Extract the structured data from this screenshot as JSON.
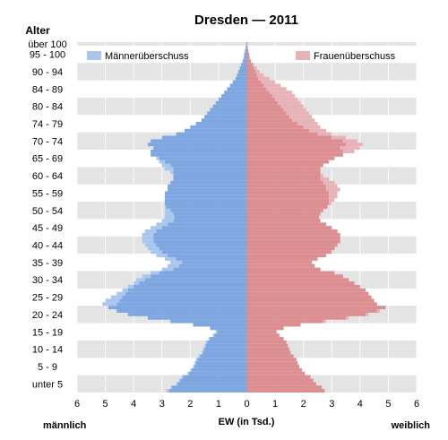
{
  "chart_data": {
    "type": "population-pyramid",
    "title": "Dresden — 2011",
    "y_axis_title": "Alter",
    "xlabel": "EW (in Tsd.)",
    "left_label": "männlich",
    "right_label": "weiblich",
    "xlim": [
      -6,
      6
    ],
    "x_ticks": [
      "6",
      "5",
      "4",
      "3",
      "2",
      "1",
      "0",
      "1",
      "2",
      "3",
      "4",
      "5",
      "6"
    ],
    "age_labels": [
      "unter 5",
      "5 - 9",
      "10 - 14",
      "15 - 19",
      "20 - 24",
      "25 - 29",
      "30 - 34",
      "35 - 39",
      "40 - 44",
      "45 - 49",
      "50 - 54",
      "55 - 59",
      "60 - 64",
      "65 - 69",
      "70 - 74",
      "74 - 79",
      "80 - 84",
      "84 - 89",
      "90 - 94",
      "95 - 100",
      "über 100"
    ],
    "legend": [
      {
        "name": "Männerüberschuss",
        "color": "#a9c6ee"
      },
      {
        "name": "Frauenüberschuss",
        "color": "#e6b4b8"
      }
    ],
    "colors": {
      "male": "#7ea6e0",
      "female": "#dc8e91",
      "male_surplus": "#a9c6ee",
      "female_surplus": "#e6b4b8",
      "band": "#e4e4e4"
    },
    "age_group_size": 5,
    "male_per_group": [
      [
        2.85,
        2.7,
        2.5,
        2.4,
        2.3
      ],
      [
        2.1,
        2.0,
        1.9,
        1.85,
        1.8
      ],
      [
        1.7,
        1.6,
        1.55,
        1.5,
        1.45
      ],
      [
        1.35,
        1.2,
        1.1,
        1.3,
        1.9
      ],
      [
        2.7,
        3.5,
        4.2,
        4.6,
        4.9
      ],
      [
        5.1,
        5.0,
        4.8,
        4.6,
        4.4
      ],
      [
        4.2,
        4.0,
        3.9,
        3.7,
        3.4
      ],
      [
        3.0,
        2.8,
        2.7,
        2.9,
        3.2
      ],
      [
        3.4,
        3.5,
        3.6,
        3.7,
        3.7
      ],
      [
        3.7,
        3.6,
        3.4,
        3.2,
        3.0
      ],
      [
        2.9,
        2.9,
        2.9,
        2.9,
        2.9
      ],
      [
        2.9,
        2.9,
        2.9,
        2.8,
        2.8
      ],
      [
        2.7,
        2.6,
        2.6,
        2.7,
        2.9
      ],
      [
        3.0,
        3.1,
        3.2,
        3.4,
        3.4
      ],
      [
        3.3,
        3.5,
        3.4,
        3.0,
        2.5
      ],
      [
        2.2,
        2.0,
        1.8,
        1.6,
        1.5
      ],
      [
        1.4,
        1.3,
        1.2,
        1.1,
        1.0
      ],
      [
        0.9,
        0.8,
        0.7,
        0.6,
        0.5
      ],
      [
        0.4,
        0.35,
        0.3,
        0.25,
        0.2
      ],
      [
        0.15,
        0.12,
        0.1,
        0.08,
        0.05
      ],
      [
        0.03
      ]
    ],
    "female_per_group": [
      [
        2.75,
        2.65,
        2.45,
        2.35,
        2.25
      ],
      [
        2.05,
        1.95,
        1.85,
        1.8,
        1.75
      ],
      [
        1.65,
        1.55,
        1.5,
        1.45,
        1.4
      ],
      [
        1.3,
        1.15,
        1.05,
        1.3,
        1.9
      ],
      [
        2.8,
        3.6,
        4.3,
        4.7,
        4.9
      ],
      [
        4.6,
        4.5,
        4.4,
        4.3,
        4.2
      ],
      [
        4.0,
        3.8,
        3.6,
        3.4,
        3.1
      ],
      [
        2.6,
        2.4,
        2.3,
        2.5,
        2.8
      ],
      [
        3.0,
        3.1,
        3.2,
        3.3,
        3.3
      ],
      [
        3.3,
        3.2,
        3.0,
        2.8,
        2.6
      ],
      [
        2.55,
        2.6,
        2.7,
        2.85,
        3.0
      ],
      [
        3.1,
        3.2,
        3.2,
        3.3,
        3.2
      ],
      [
        3.1,
        2.9,
        2.7,
        2.6,
        2.6
      ],
      [
        2.7,
        2.9,
        3.1,
        3.4,
        3.8
      ],
      [
        4.0,
        4.1,
        3.9,
        3.5,
        3.0
      ],
      [
        2.8,
        2.6,
        2.5,
        2.4,
        2.3
      ],
      [
        2.2,
        2.1,
        2.0,
        1.9,
        1.8
      ],
      [
        1.7,
        1.6,
        1.4,
        1.2,
        1.0
      ],
      [
        0.8,
        0.6,
        0.45,
        0.35,
        0.25
      ],
      [
        0.15,
        0.1,
        0.08,
        0.05,
        0.03
      ],
      [
        0.02
      ]
    ]
  }
}
